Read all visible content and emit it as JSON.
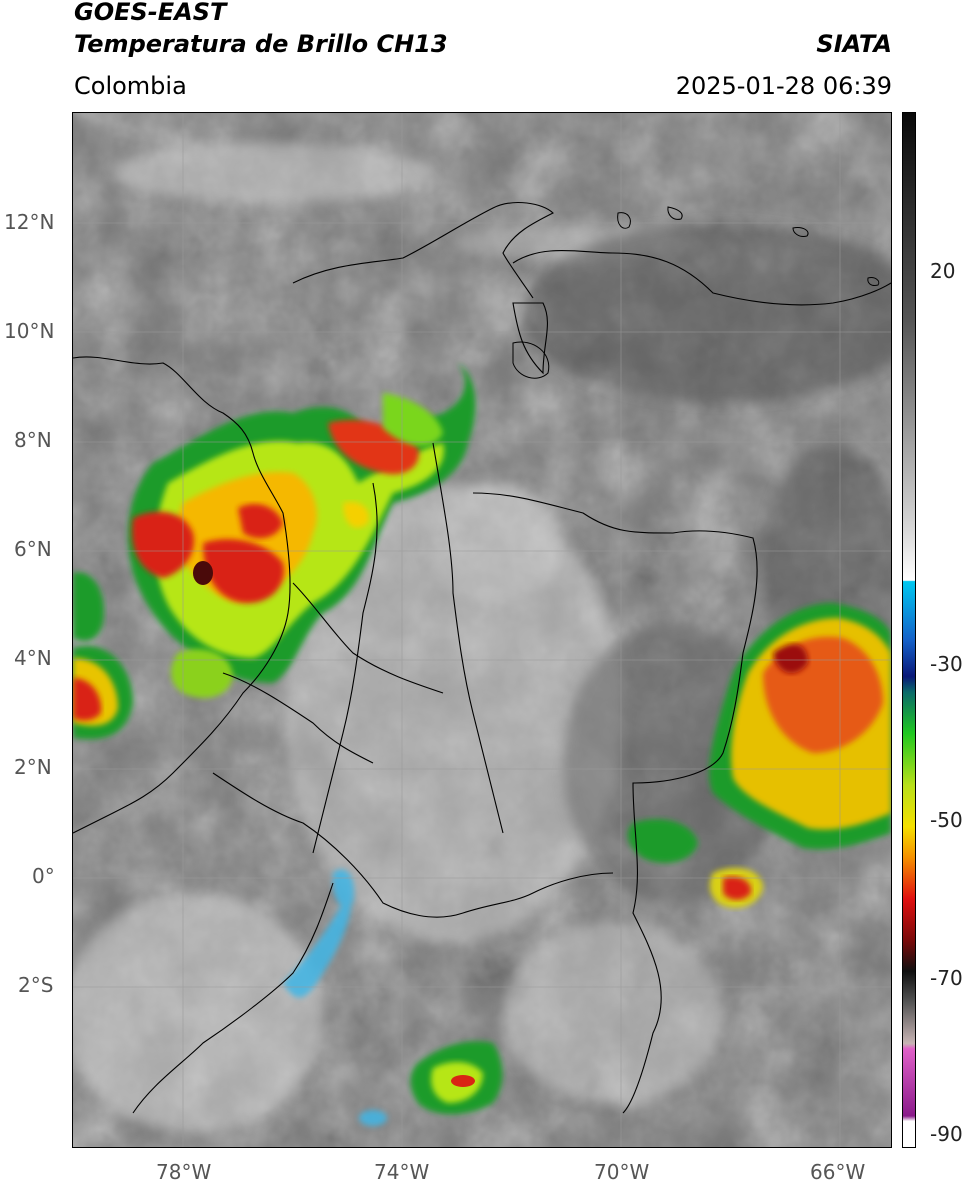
{
  "header": {
    "satellite": "GOES-EAST",
    "product": "Temperatura de Brillo CH13",
    "agency": "SIATA",
    "region": "Colombia",
    "datetime": "2025-01-28 06:39"
  },
  "map": {
    "lat_ticks": [
      "12°N",
      "10°N",
      "8°N",
      "6°N",
      "4°N",
      "2°N",
      "0°",
      "2°S"
    ],
    "lon_ticks": [
      "78°W",
      "74°W",
      "70°W",
      "66°W"
    ]
  },
  "colorbar": {
    "ticks": [
      "20",
      "-30",
      "-50",
      "-70",
      "-90"
    ]
  }
}
